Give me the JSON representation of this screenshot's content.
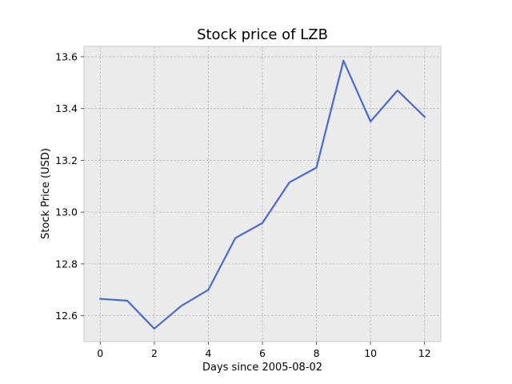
{
  "chart_data": {
    "type": "line",
    "title": "Stock price of LZB",
    "xlabel": "Days since 2005-08-02",
    "ylabel": "Stock Price (USD)",
    "xlim": [
      -0.6,
      12.6
    ],
    "ylim": [
      12.5,
      13.64
    ],
    "xticks": [
      0,
      2,
      4,
      6,
      8,
      10,
      12
    ],
    "xtick_labels": [
      "0",
      "2",
      "4",
      "6",
      "8",
      "10",
      "12"
    ],
    "yticks": [
      12.6,
      12.8,
      13.0,
      13.2,
      13.4,
      13.6
    ],
    "ytick_labels": [
      "12.6",
      "12.8",
      "13.0",
      "13.2",
      "13.4",
      "13.6"
    ],
    "grid": true,
    "series": [
      {
        "color": "#4a6bcc",
        "x": [
          0,
          1,
          2,
          3,
          4,
          5,
          6,
          7,
          8,
          9,
          10,
          11,
          12
        ],
        "y": [
          12.665,
          12.658,
          12.55,
          12.638,
          12.7,
          12.9,
          12.958,
          13.115,
          13.172,
          13.585,
          13.35,
          13.47,
          13.368
        ]
      }
    ],
    "background": "#ebebeb"
  }
}
